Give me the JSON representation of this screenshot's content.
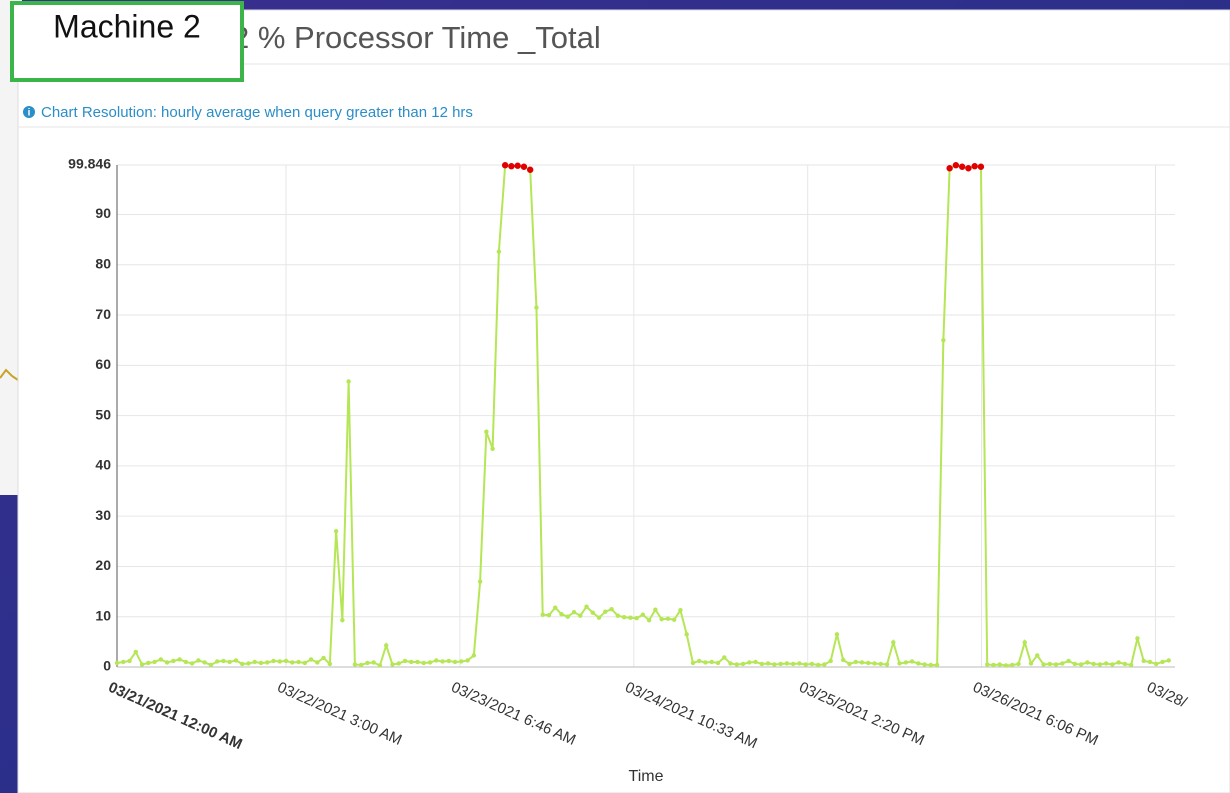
{
  "overlay_label": "Machine 2",
  "note": "Chart Resolution: hourly average when query greater than 12 hrs",
  "chart_data": {
    "type": "line",
    "title": "2 % Processor Time _Total",
    "xlabel": "Time",
    "xlim": [
      0,
      169
    ],
    "xticks": [
      {
        "value": 0,
        "label": "03/21/2021 12:00 AM"
      },
      {
        "value": 27,
        "label": "03/22/2021 3:00 AM"
      },
      {
        "value": 54.77,
        "label": "03/23/2021 6:46 AM"
      },
      {
        "value": 82.55,
        "label": "03/24/2021 10:33 AM"
      },
      {
        "value": 110.33,
        "label": "03/25/2021 2:20 PM"
      },
      {
        "value": 138.1,
        "label": "03/26/2021 6:06 PM"
      },
      {
        "value": 165.88,
        "label": "03/28/"
      }
    ],
    "ylim": [
      0,
      99.846
    ],
    "yticks": [
      0,
      10,
      20,
      30,
      40,
      50,
      60,
      70,
      80,
      90,
      99.846
    ],
    "grid": true,
    "highlight": {
      "color": "#e00000",
      "above": 98
    },
    "series": [
      {
        "name": "% Processor Time _Total",
        "color": "#b5e655",
        "values": [
          0.8,
          1,
          1.2,
          3,
          0.5,
          0.8,
          1,
          1.5,
          0.9,
          1.2,
          1.5,
          1,
          0.7,
          1.3,
          0.9,
          0.4,
          1.1,
          1.2,
          1,
          1.3,
          0.6,
          0.7,
          1,
          0.8,
          0.9,
          1.2,
          1.1,
          1.2,
          0.9,
          1,
          0.8,
          1.5,
          0.9,
          1.8,
          0.6,
          27,
          9.3,
          56.8,
          0.5,
          0.4,
          0.8,
          0.9,
          0.3,
          4.3,
          0.5,
          0.7,
          1.2,
          1,
          1,
          0.8,
          0.9,
          1.3,
          1.1,
          1.2,
          1,
          1.1,
          1.3,
          2.3,
          17,
          46.8,
          43.4,
          82.6,
          99.8,
          99.6,
          99.7,
          99.5,
          98.9,
          71.5,
          10.4,
          10.3,
          11.8,
          10.5,
          10,
          10.9,
          10.2,
          12,
          10.8,
          9.8,
          11,
          11.5,
          10.2,
          9.9,
          9.8,
          9.7,
          10.4,
          9.3,
          11.4,
          9.5,
          9.6,
          9.4,
          11.3,
          6.5,
          0.8,
          1.2,
          0.9,
          1,
          0.8,
          1.9,
          0.7,
          0.5,
          0.6,
          0.9,
          1,
          0.6,
          0.7,
          0.5,
          0.6,
          0.7,
          0.6,
          0.7,
          0.5,
          0.6,
          0.4,
          0.5,
          1.2,
          6.5,
          1.4,
          0.6,
          1,
          0.9,
          0.8,
          0.7,
          0.6,
          0.5,
          4.9,
          0.7,
          0.9,
          1.1,
          0.7,
          0.5,
          0.4,
          0.4,
          65,
          99.2,
          99.8,
          99.5,
          99.2,
          99.6,
          99.5,
          0.5,
          0.4,
          0.5,
          0.3,
          0.4,
          0.6,
          4.9,
          0.7,
          2.3,
          0.5,
          0.6,
          0.5,
          0.7,
          1.2,
          0.6,
          0.5,
          0.9,
          0.6,
          0.5,
          0.7,
          0.5,
          0.9,
          0.6,
          0.4,
          5.7,
          1.2,
          1,
          0.6,
          1,
          1.3
        ]
      }
    ]
  }
}
